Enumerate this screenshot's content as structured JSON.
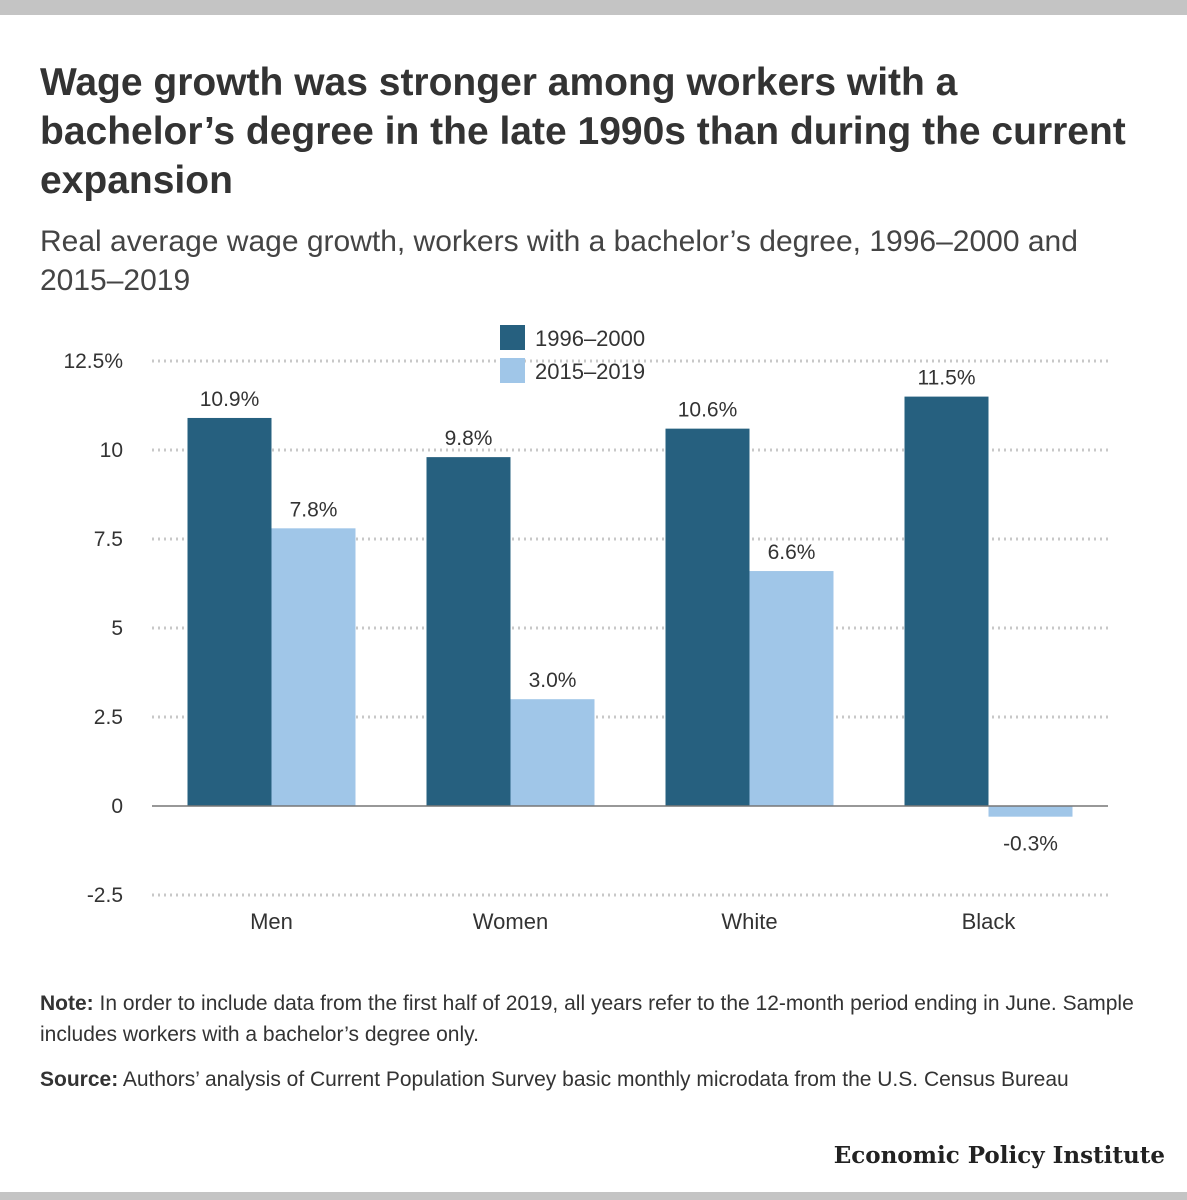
{
  "title": "Wage growth was stronger among workers with a bachelor’s degree in the late 1990s than during the current expansion",
  "subtitle": "Real average wage growth, workers with a bachelor’s degree, 1996–2000 and 2015–2019",
  "chart_data": {
    "type": "bar",
    "categories": [
      "Men",
      "Women",
      "White",
      "Black"
    ],
    "series": [
      {
        "name": "1996–2000",
        "values": [
          10.9,
          9.8,
          10.6,
          11.5
        ],
        "labels": [
          "10.9%",
          "9.8%",
          "10.6%",
          "11.5%"
        ],
        "color": "#26607f"
      },
      {
        "name": "2015–2019",
        "values": [
          7.8,
          3.0,
          6.6,
          -0.3
        ],
        "labels": [
          "7.8%",
          "3.0%",
          "6.6%",
          "-0.3%"
        ],
        "color": "#a0c6e8"
      }
    ],
    "yticks": [
      12.5,
      10,
      7.5,
      5,
      2.5,
      0,
      -2.5
    ],
    "ytick_labels": [
      "12.5%",
      "10",
      "7.5",
      "5",
      "2.5",
      "0",
      "-2.5"
    ],
    "ylim": [
      -2.5,
      12.5
    ],
    "xlabel": "",
    "ylabel": "",
    "grid": true,
    "legend_position": "top-center"
  },
  "note": {
    "label": "Note:",
    "text": " In order to include data from the first half of 2019, all years refer to the 12-month period ending in June. Sample includes workers with a bachelor’s degree only."
  },
  "source": {
    "label": "Source:",
    "text": " Authors’ analysis of Current Population Survey basic monthly microdata from the U.S. Census Bureau"
  },
  "publisher": "Economic Policy Institute"
}
